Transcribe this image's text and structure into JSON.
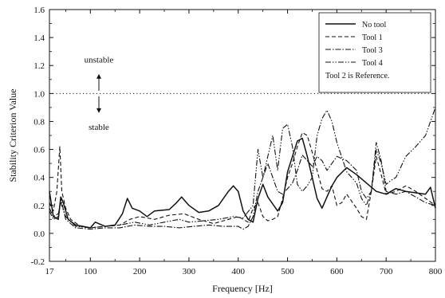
{
  "chart_data": {
    "type": "line",
    "title": "",
    "xlabel": "Frequency [Hz]",
    "ylabel": "Stability Criterion Value",
    "xlim": [
      17,
      800
    ],
    "ylim": [
      -0.2,
      1.6
    ],
    "x_ticks": [
      17,
      100,
      200,
      300,
      400,
      500,
      600,
      700,
      800
    ],
    "x_tick_labels": [
      "17",
      "100",
      "200",
      "300",
      "400",
      "500",
      "600",
      "700",
      "800"
    ],
    "y_ticks": [
      -0.2,
      0.0,
      0.2,
      0.4,
      0.6,
      0.8,
      1.0,
      1.2,
      1.4,
      1.6
    ],
    "y_tick_labels": [
      "-0.2",
      "0.0",
      "0.2",
      "0.4",
      "0.6",
      "0.8",
      "1.0",
      "1.2",
      "1.4",
      "1.6"
    ],
    "grid": false,
    "legend_position": "top-right",
    "reference_line": {
      "y": 1.0,
      "style": "dotted"
    },
    "annotations": {
      "unstable": "unstable",
      "stable": "stable",
      "legend_note": "Tool 2 is Reference."
    },
    "series": [
      {
        "name": "No tool",
        "style": "solid",
        "points": [
          [
            17,
            0.3
          ],
          [
            25,
            0.12
          ],
          [
            35,
            0.1
          ],
          [
            40,
            0.26
          ],
          [
            45,
            0.22
          ],
          [
            55,
            0.1
          ],
          [
            70,
            0.06
          ],
          [
            100,
            0.04
          ],
          [
            110,
            0.08
          ],
          [
            130,
            0.05
          ],
          [
            150,
            0.06
          ],
          [
            165,
            0.14
          ],
          [
            175,
            0.25
          ],
          [
            185,
            0.18
          ],
          [
            200,
            0.16
          ],
          [
            215,
            0.12
          ],
          [
            230,
            0.16
          ],
          [
            260,
            0.17
          ],
          [
            275,
            0.22
          ],
          [
            285,
            0.26
          ],
          [
            300,
            0.2
          ],
          [
            320,
            0.15
          ],
          [
            340,
            0.16
          ],
          [
            360,
            0.2
          ],
          [
            380,
            0.3
          ],
          [
            390,
            0.34
          ],
          [
            400,
            0.3
          ],
          [
            410,
            0.16
          ],
          [
            420,
            0.1
          ],
          [
            430,
            0.08
          ],
          [
            440,
            0.25
          ],
          [
            450,
            0.35
          ],
          [
            460,
            0.26
          ],
          [
            470,
            0.21
          ],
          [
            480,
            0.16
          ],
          [
            490,
            0.22
          ],
          [
            500,
            0.44
          ],
          [
            510,
            0.55
          ],
          [
            520,
            0.66
          ],
          [
            530,
            0.68
          ],
          [
            540,
            0.55
          ],
          [
            550,
            0.4
          ],
          [
            560,
            0.25
          ],
          [
            570,
            0.18
          ],
          [
            580,
            0.26
          ],
          [
            590,
            0.34
          ],
          [
            600,
            0.4
          ],
          [
            620,
            0.47
          ],
          [
            640,
            0.42
          ],
          [
            660,
            0.36
          ],
          [
            680,
            0.3
          ],
          [
            700,
            0.28
          ],
          [
            720,
            0.32
          ],
          [
            740,
            0.3
          ],
          [
            760,
            0.29
          ],
          [
            780,
            0.28
          ],
          [
            790,
            0.33
          ],
          [
            800,
            0.18
          ]
        ]
      },
      {
        "name": "Tool 1",
        "style": "dashed",
        "points": [
          [
            17,
            0.22
          ],
          [
            25,
            0.16
          ],
          [
            32,
            0.3
          ],
          [
            38,
            0.62
          ],
          [
            42,
            0.3
          ],
          [
            50,
            0.18
          ],
          [
            60,
            0.1
          ],
          [
            80,
            0.05
          ],
          [
            100,
            0.04
          ],
          [
            130,
            0.05
          ],
          [
            160,
            0.06
          ],
          [
            180,
            0.1
          ],
          [
            200,
            0.12
          ],
          [
            230,
            0.1
          ],
          [
            260,
            0.13
          ],
          [
            290,
            0.14
          ],
          [
            320,
            0.1
          ],
          [
            350,
            0.07
          ],
          [
            380,
            0.1
          ],
          [
            400,
            0.12
          ],
          [
            420,
            0.08
          ],
          [
            430,
            0.18
          ],
          [
            440,
            0.22
          ],
          [
            450,
            0.12
          ],
          [
            460,
            0.09
          ],
          [
            470,
            0.1
          ],
          [
            480,
            0.12
          ],
          [
            490,
            0.25
          ],
          [
            500,
            0.4
          ],
          [
            510,
            0.5
          ],
          [
            520,
            0.62
          ],
          [
            530,
            0.72
          ],
          [
            540,
            0.7
          ],
          [
            550,
            0.58
          ],
          [
            560,
            0.45
          ],
          [
            570,
            0.32
          ],
          [
            580,
            0.3
          ],
          [
            590,
            0.34
          ],
          [
            600,
            0.2
          ],
          [
            610,
            0.22
          ],
          [
            620,
            0.28
          ],
          [
            640,
            0.18
          ],
          [
            650,
            0.12
          ],
          [
            660,
            0.1
          ],
          [
            670,
            0.3
          ],
          [
            680,
            0.55
          ],
          [
            690,
            0.42
          ],
          [
            700,
            0.28
          ],
          [
            720,
            0.3
          ],
          [
            740,
            0.34
          ],
          [
            760,
            0.3
          ],
          [
            780,
            0.25
          ],
          [
            800,
            0.2
          ]
        ]
      },
      {
        "name": "Tool 3",
        "style": "dashdot",
        "points": [
          [
            17,
            0.16
          ],
          [
            25,
            0.1
          ],
          [
            35,
            0.12
          ],
          [
            40,
            0.25
          ],
          [
            50,
            0.1
          ],
          [
            70,
            0.04
          ],
          [
            100,
            0.03
          ],
          [
            130,
            0.04
          ],
          [
            160,
            0.04
          ],
          [
            190,
            0.06
          ],
          [
            220,
            0.05
          ],
          [
            250,
            0.05
          ],
          [
            280,
            0.04
          ],
          [
            310,
            0.05
          ],
          [
            340,
            0.06
          ],
          [
            370,
            0.05
          ],
          [
            400,
            0.05
          ],
          [
            410,
            0.03
          ],
          [
            420,
            0.05
          ],
          [
            430,
            0.12
          ],
          [
            440,
            0.3
          ],
          [
            450,
            0.4
          ],
          [
            460,
            0.5
          ],
          [
            470,
            0.4
          ],
          [
            480,
            0.3
          ],
          [
            490,
            0.28
          ],
          [
            500,
            0.32
          ],
          [
            510,
            0.36
          ],
          [
            520,
            0.45
          ],
          [
            530,
            0.56
          ],
          [
            540,
            0.52
          ],
          [
            550,
            0.48
          ],
          [
            560,
            0.55
          ],
          [
            570,
            0.52
          ],
          [
            580,
            0.45
          ],
          [
            590,
            0.5
          ],
          [
            600,
            0.55
          ],
          [
            620,
            0.52
          ],
          [
            640,
            0.45
          ],
          [
            650,
            0.3
          ],
          [
            660,
            0.25
          ],
          [
            670,
            0.3
          ],
          [
            680,
            0.65
          ],
          [
            690,
            0.52
          ],
          [
            700,
            0.3
          ],
          [
            720,
            0.28
          ],
          [
            740,
            0.3
          ],
          [
            760,
            0.26
          ],
          [
            780,
            0.22
          ],
          [
            800,
            0.2
          ]
        ]
      },
      {
        "name": "Tool 4",
        "style": "dashdotdot",
        "points": [
          [
            17,
            0.18
          ],
          [
            25,
            0.12
          ],
          [
            35,
            0.14
          ],
          [
            40,
            0.22
          ],
          [
            50,
            0.12
          ],
          [
            70,
            0.05
          ],
          [
            100,
            0.04
          ],
          [
            130,
            0.05
          ],
          [
            160,
            0.06
          ],
          [
            190,
            0.08
          ],
          [
            220,
            0.06
          ],
          [
            250,
            0.08
          ],
          [
            280,
            0.1
          ],
          [
            300,
            0.08
          ],
          [
            330,
            0.09
          ],
          [
            360,
            0.1
          ],
          [
            390,
            0.12
          ],
          [
            410,
            0.11
          ],
          [
            430,
            0.2
          ],
          [
            440,
            0.6
          ],
          [
            450,
            0.4
          ],
          [
            460,
            0.55
          ],
          [
            470,
            0.7
          ],
          [
            480,
            0.45
          ],
          [
            490,
            0.75
          ],
          [
            500,
            0.78
          ],
          [
            510,
            0.62
          ],
          [
            520,
            0.35
          ],
          [
            530,
            0.3
          ],
          [
            540,
            0.34
          ],
          [
            550,
            0.4
          ],
          [
            560,
            0.7
          ],
          [
            570,
            0.82
          ],
          [
            580,
            0.88
          ],
          [
            590,
            0.8
          ],
          [
            600,
            0.65
          ],
          [
            620,
            0.44
          ],
          [
            640,
            0.36
          ],
          [
            650,
            0.25
          ],
          [
            660,
            0.2
          ],
          [
            670,
            0.3
          ],
          [
            680,
            0.6
          ],
          [
            690,
            0.5
          ],
          [
            700,
            0.35
          ],
          [
            710,
            0.38
          ],
          [
            720,
            0.4
          ],
          [
            740,
            0.55
          ],
          [
            760,
            0.62
          ],
          [
            780,
            0.7
          ],
          [
            790,
            0.8
          ],
          [
            800,
            0.9
          ]
        ]
      }
    ]
  }
}
